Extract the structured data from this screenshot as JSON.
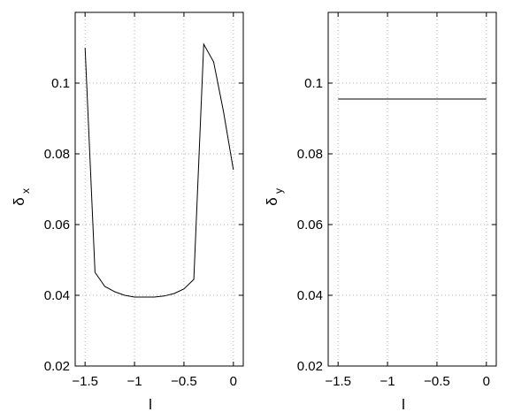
{
  "chart_data": [
    {
      "type": "line",
      "xlabel": "l",
      "ylabel": "δ",
      "ylabel_sub": "x",
      "xlim": [
        -1.6,
        0.1
      ],
      "ylim": [
        0.02,
        0.12
      ],
      "xticks": [
        -1.5,
        -1,
        -0.5,
        0
      ],
      "xtick_labels": [
        "−1.5",
        "−1",
        "−0.5",
        "0"
      ],
      "yticks": [
        0.02,
        0.04,
        0.06,
        0.08,
        0.1
      ],
      "ytick_labels": [
        "0.02",
        "0.04",
        "0.06",
        "0.08",
        "0.1"
      ],
      "grid": true,
      "series": [
        {
          "color": "#000000",
          "x": [
            -1.5,
            -1.4,
            -1.3,
            -1.2,
            -1.1,
            -1.0,
            -0.9,
            -0.8,
            -0.7,
            -0.6,
            -0.5,
            -0.4,
            -0.3,
            -0.2,
            -0.1,
            0.0
          ],
          "y": [
            0.11,
            0.0465,
            0.0425,
            0.041,
            0.04,
            0.0395,
            0.0395,
            0.0395,
            0.0398,
            0.0405,
            0.0418,
            0.0445,
            0.111,
            0.106,
            0.092,
            0.0755
          ]
        }
      ]
    },
    {
      "type": "line",
      "xlabel": "l",
      "ylabel": "δ",
      "ylabel_sub": "y",
      "xlim": [
        -1.6,
        0.1
      ],
      "ylim": [
        0.02,
        0.12
      ],
      "xticks": [
        -1.5,
        -1,
        -0.5,
        0
      ],
      "xtick_labels": [
        "−1.5",
        "−1",
        "−0.5",
        "0"
      ],
      "yticks": [
        0.02,
        0.04,
        0.06,
        0.08,
        0.1
      ],
      "ytick_labels": [
        "0.02",
        "0.04",
        "0.06",
        "0.08",
        "0.1"
      ],
      "grid": true,
      "series": [
        {
          "color": "#000000",
          "x": [
            -1.5,
            0.0
          ],
          "y": [
            0.0955,
            0.0955
          ]
        }
      ]
    }
  ]
}
